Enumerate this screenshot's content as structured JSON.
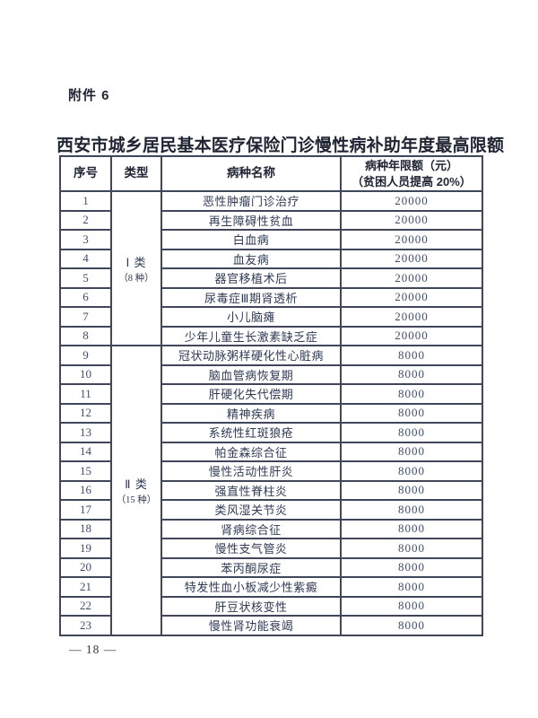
{
  "page": {
    "attachment_label": "附件 6",
    "title": "西安市城乡居民基本医疗保险门诊慢性病补助年度最高限额",
    "footer_page_number": "— 18 —"
  },
  "table": {
    "headers": {
      "col_no": "序号",
      "col_type": "类型",
      "col_disease": "病种名称",
      "col_limit_line1": "病种年限额（元）",
      "col_limit_line2": "（贫困人员提高 20%）"
    },
    "groups": [
      {
        "type_main": "Ⅰ 类",
        "type_sub": "（8 种）",
        "rows": [
          {
            "no": "1",
            "disease": "恶性肿瘤门诊治疗",
            "amount": "20000"
          },
          {
            "no": "2",
            "disease": "再生障碍性贫血",
            "amount": "20000"
          },
          {
            "no": "3",
            "disease": "白血病",
            "amount": "20000"
          },
          {
            "no": "4",
            "disease": "血友病",
            "amount": "20000"
          },
          {
            "no": "5",
            "disease": "器官移植术后",
            "amount": "20000"
          },
          {
            "no": "6",
            "disease": "尿毒症Ⅲ期肾透析",
            "amount": "20000"
          },
          {
            "no": "7",
            "disease": "小儿脑瘫",
            "amount": "20000"
          },
          {
            "no": "8",
            "disease": "少年儿童生长激素缺乏症",
            "amount": "20000"
          }
        ]
      },
      {
        "type_main": "Ⅱ 类",
        "type_sub": "（15 种）",
        "rows": [
          {
            "no": "9",
            "disease": "冠状动脉粥样硬化性心脏病",
            "amount": "8000"
          },
          {
            "no": "10",
            "disease": "脑血管病恢复期",
            "amount": "8000"
          },
          {
            "no": "11",
            "disease": "肝硬化失代偿期",
            "amount": "8000"
          },
          {
            "no": "12",
            "disease": "精神疾病",
            "amount": "8000"
          },
          {
            "no": "13",
            "disease": "系统性红斑狼疮",
            "amount": "8000"
          },
          {
            "no": "14",
            "disease": "帕金森综合征",
            "amount": "8000"
          },
          {
            "no": "15",
            "disease": "慢性活动性肝炎",
            "amount": "8000"
          },
          {
            "no": "16",
            "disease": "强直性脊柱炎",
            "amount": "8000"
          },
          {
            "no": "17",
            "disease": "类风湿关节炎",
            "amount": "8000"
          },
          {
            "no": "18",
            "disease": "肾病综合征",
            "amount": "8000"
          },
          {
            "no": "19",
            "disease": "慢性支气管炎",
            "amount": "8000"
          },
          {
            "no": "20",
            "disease": "苯丙酮尿症",
            "amount": "8000"
          },
          {
            "no": "21",
            "disease": "特发性血小板减少性紫癜",
            "amount": "8000"
          },
          {
            "no": "22",
            "disease": "肝豆状核变性",
            "amount": "8000"
          },
          {
            "no": "23",
            "disease": "慢性肾功能衰竭",
            "amount": "8000"
          }
        ]
      }
    ]
  },
  "colors": {
    "background": "#ffffff",
    "text_dark": "#1f2433",
    "text_body": "#2e3a55",
    "number": "#3f4e6e",
    "border": "#40475a"
  }
}
